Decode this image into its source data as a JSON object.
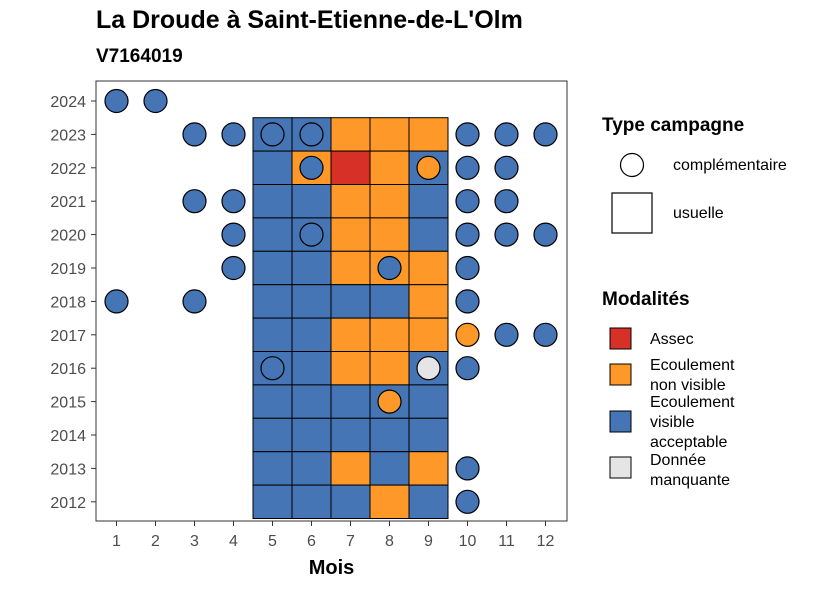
{
  "chart_data": {
    "type": "heatmap",
    "title": "La Droude à Saint-Etienne-de-L'Olm",
    "subtitle": "V7164019",
    "xlabel": "Mois",
    "ylabel": "",
    "x_ticks": [
      "1",
      "2",
      "3",
      "4",
      "5",
      "6",
      "7",
      "8",
      "9",
      "10",
      "11",
      "12"
    ],
    "y_ticks": [
      "2012",
      "2013",
      "2014",
      "2015",
      "2016",
      "2017",
      "2018",
      "2019",
      "2020",
      "2021",
      "2022",
      "2023",
      "2024"
    ],
    "legend_type": {
      "title": "Type campagne",
      "items": [
        {
          "label": "complémentaire",
          "shape": "circle"
        },
        {
          "label": "usuelle",
          "shape": "square"
        }
      ]
    },
    "legend_modalites": {
      "title": "Modalités",
      "items": [
        {
          "key": "A",
          "label": "Assec",
          "color": "#d73027"
        },
        {
          "key": "N",
          "label": "Ecoulement non visible",
          "color": "#fe9929"
        },
        {
          "key": "V",
          "label": "Ecoulement visible acceptable",
          "color": "#4575b4"
        },
        {
          "key": "M",
          "label": "Donnée manquante",
          "color": "#e5e5e5"
        }
      ]
    },
    "usuelle": [
      {
        "year": 2023,
        "values": {
          "5": "V",
          "6": "V",
          "7": "N",
          "8": "N",
          "9": "N"
        }
      },
      {
        "year": 2022,
        "values": {
          "5": "V",
          "6": "N",
          "7": "A",
          "8": "N",
          "9": "V"
        }
      },
      {
        "year": 2021,
        "values": {
          "5": "V",
          "6": "V",
          "7": "N",
          "8": "N",
          "9": "V"
        }
      },
      {
        "year": 2020,
        "values": {
          "5": "V",
          "6": "V",
          "7": "N",
          "8": "N",
          "9": "V"
        }
      },
      {
        "year": 2019,
        "values": {
          "5": "V",
          "6": "V",
          "7": "N",
          "8": "N",
          "9": "N"
        }
      },
      {
        "year": 2018,
        "values": {
          "5": "V",
          "6": "V",
          "7": "V",
          "8": "V",
          "9": "N"
        }
      },
      {
        "year": 2017,
        "values": {
          "5": "V",
          "6": "V",
          "7": "N",
          "8": "N",
          "9": "N"
        }
      },
      {
        "year": 2016,
        "values": {
          "5": "V",
          "6": "V",
          "7": "N",
          "8": "N",
          "9": "V"
        }
      },
      {
        "year": 2015,
        "values": {
          "5": "V",
          "6": "V",
          "7": "V",
          "8": "V",
          "9": "V"
        }
      },
      {
        "year": 2014,
        "values": {
          "5": "V",
          "6": "V",
          "7": "V",
          "8": "V",
          "9": "V"
        }
      },
      {
        "year": 2013,
        "values": {
          "5": "V",
          "6": "V",
          "7": "N",
          "8": "V",
          "9": "N"
        }
      },
      {
        "year": 2012,
        "values": {
          "5": "V",
          "6": "V",
          "7": "V",
          "8": "N",
          "9": "V"
        }
      }
    ],
    "complementaire": [
      {
        "year": 2024,
        "month": 1,
        "value": "V"
      },
      {
        "year": 2024,
        "month": 2,
        "value": "V"
      },
      {
        "year": 2023,
        "month": 3,
        "value": "V"
      },
      {
        "year": 2023,
        "month": 4,
        "value": "V"
      },
      {
        "year": 2023,
        "month": 5,
        "value": "V"
      },
      {
        "year": 2023,
        "month": 6,
        "value": "V"
      },
      {
        "year": 2023,
        "month": 10,
        "value": "V"
      },
      {
        "year": 2023,
        "month": 11,
        "value": "V"
      },
      {
        "year": 2023,
        "month": 12,
        "value": "V"
      },
      {
        "year": 2022,
        "month": 6,
        "value": "V"
      },
      {
        "year": 2022,
        "month": 9,
        "value": "N"
      },
      {
        "year": 2022,
        "month": 10,
        "value": "V"
      },
      {
        "year": 2022,
        "month": 11,
        "value": "V"
      },
      {
        "year": 2021,
        "month": 3,
        "value": "V"
      },
      {
        "year": 2021,
        "month": 4,
        "value": "V"
      },
      {
        "year": 2021,
        "month": 10,
        "value": "V"
      },
      {
        "year": 2021,
        "month": 11,
        "value": "V"
      },
      {
        "year": 2020,
        "month": 4,
        "value": "V"
      },
      {
        "year": 2020,
        "month": 6,
        "value": "V"
      },
      {
        "year": 2020,
        "month": 10,
        "value": "V"
      },
      {
        "year": 2020,
        "month": 11,
        "value": "V"
      },
      {
        "year": 2020,
        "month": 12,
        "value": "V"
      },
      {
        "year": 2019,
        "month": 4,
        "value": "V"
      },
      {
        "year": 2019,
        "month": 8,
        "value": "V"
      },
      {
        "year": 2019,
        "month": 10,
        "value": "V"
      },
      {
        "year": 2018,
        "month": 1,
        "value": "V"
      },
      {
        "year": 2018,
        "month": 3,
        "value": "V"
      },
      {
        "year": 2018,
        "month": 10,
        "value": "V"
      },
      {
        "year": 2017,
        "month": 10,
        "value": "N"
      },
      {
        "year": 2017,
        "month": 11,
        "value": "V"
      },
      {
        "year": 2017,
        "month": 12,
        "value": "V"
      },
      {
        "year": 2016,
        "month": 5,
        "value": "V"
      },
      {
        "year": 2016,
        "month": 9,
        "value": "M"
      },
      {
        "year": 2016,
        "month": 10,
        "value": "V"
      },
      {
        "year": 2015,
        "month": 8,
        "value": "N"
      },
      {
        "year": 2013,
        "month": 10,
        "value": "V"
      },
      {
        "year": 2012,
        "month": 10,
        "value": "V"
      }
    ]
  }
}
